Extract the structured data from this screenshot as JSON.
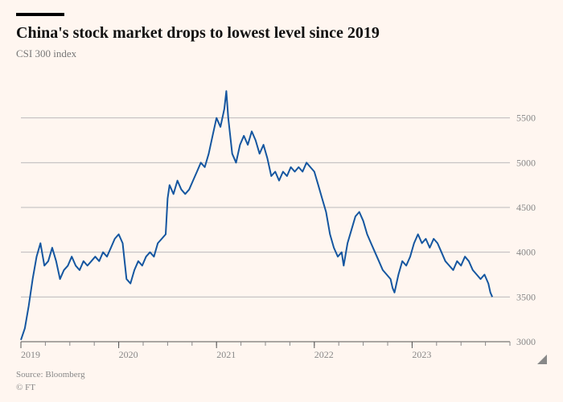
{
  "brand_bar_color": "#000000",
  "title": "China's stock market drops to lowest level since 2019",
  "subtitle": "CSI 300 index",
  "footer_source": "Source: Bloomberg",
  "footer_copyright": "© FT",
  "chart": {
    "type": "line",
    "background_color": "#fff6f0",
    "line_color": "#1556a0",
    "line_width": 2,
    "grid_color": "#bbbbbb",
    "baseline_color": "#555555",
    "label_color": "#888888",
    "label_fontsize": 12,
    "x_domain": [
      2019,
      2024
    ],
    "x_ticks": [
      2019,
      2020,
      2021,
      2022,
      2023
    ],
    "x_minor_step": 0.25,
    "y_domain": [
      3000,
      6000
    ],
    "y_ticks": [
      3000,
      3500,
      4000,
      4500,
      5000,
      5500
    ],
    "data": [
      [
        2019.0,
        3020
      ],
      [
        2019.04,
        3150
      ],
      [
        2019.08,
        3400
      ],
      [
        2019.12,
        3700
      ],
      [
        2019.16,
        3950
      ],
      [
        2019.2,
        4100
      ],
      [
        2019.24,
        3850
      ],
      [
        2019.28,
        3900
      ],
      [
        2019.32,
        4050
      ],
      [
        2019.36,
        3900
      ],
      [
        2019.4,
        3700
      ],
      [
        2019.44,
        3800
      ],
      [
        2019.48,
        3850
      ],
      [
        2019.52,
        3950
      ],
      [
        2019.56,
        3850
      ],
      [
        2019.6,
        3800
      ],
      [
        2019.64,
        3900
      ],
      [
        2019.68,
        3850
      ],
      [
        2019.72,
        3900
      ],
      [
        2019.76,
        3950
      ],
      [
        2019.8,
        3900
      ],
      [
        2019.84,
        4000
      ],
      [
        2019.88,
        3950
      ],
      [
        2019.92,
        4050
      ],
      [
        2019.96,
        4150
      ],
      [
        2020.0,
        4200
      ],
      [
        2020.04,
        4100
      ],
      [
        2020.08,
        3700
      ],
      [
        2020.12,
        3650
      ],
      [
        2020.16,
        3800
      ],
      [
        2020.2,
        3900
      ],
      [
        2020.24,
        3850
      ],
      [
        2020.28,
        3950
      ],
      [
        2020.32,
        4000
      ],
      [
        2020.36,
        3950
      ],
      [
        2020.4,
        4100
      ],
      [
        2020.44,
        4150
      ],
      [
        2020.48,
        4200
      ],
      [
        2020.5,
        4600
      ],
      [
        2020.52,
        4750
      ],
      [
        2020.56,
        4650
      ],
      [
        2020.6,
        4800
      ],
      [
        2020.64,
        4700
      ],
      [
        2020.68,
        4650
      ],
      [
        2020.72,
        4700
      ],
      [
        2020.76,
        4800
      ],
      [
        2020.8,
        4900
      ],
      [
        2020.84,
        5000
      ],
      [
        2020.88,
        4950
      ],
      [
        2020.92,
        5100
      ],
      [
        2020.96,
        5300
      ],
      [
        2021.0,
        5500
      ],
      [
        2021.04,
        5400
      ],
      [
        2021.08,
        5600
      ],
      [
        2021.1,
        5800
      ],
      [
        2021.12,
        5500
      ],
      [
        2021.16,
        5100
      ],
      [
        2021.2,
        5000
      ],
      [
        2021.24,
        5200
      ],
      [
        2021.28,
        5300
      ],
      [
        2021.32,
        5200
      ],
      [
        2021.36,
        5350
      ],
      [
        2021.4,
        5250
      ],
      [
        2021.44,
        5100
      ],
      [
        2021.48,
        5200
      ],
      [
        2021.52,
        5050
      ],
      [
        2021.56,
        4850
      ],
      [
        2021.6,
        4900
      ],
      [
        2021.64,
        4800
      ],
      [
        2021.68,
        4900
      ],
      [
        2021.72,
        4850
      ],
      [
        2021.76,
        4950
      ],
      [
        2021.8,
        4900
      ],
      [
        2021.84,
        4950
      ],
      [
        2021.88,
        4900
      ],
      [
        2021.92,
        5000
      ],
      [
        2021.96,
        4950
      ],
      [
        2022.0,
        4900
      ],
      [
        2022.04,
        4750
      ],
      [
        2022.08,
        4600
      ],
      [
        2022.12,
        4450
      ],
      [
        2022.16,
        4200
      ],
      [
        2022.2,
        4050
      ],
      [
        2022.24,
        3950
      ],
      [
        2022.28,
        4000
      ],
      [
        2022.3,
        3850
      ],
      [
        2022.34,
        4100
      ],
      [
        2022.38,
        4250
      ],
      [
        2022.42,
        4400
      ],
      [
        2022.46,
        4450
      ],
      [
        2022.5,
        4350
      ],
      [
        2022.54,
        4200
      ],
      [
        2022.58,
        4100
      ],
      [
        2022.62,
        4000
      ],
      [
        2022.66,
        3900
      ],
      [
        2022.7,
        3800
      ],
      [
        2022.74,
        3750
      ],
      [
        2022.78,
        3700
      ],
      [
        2022.8,
        3600
      ],
      [
        2022.82,
        3550
      ],
      [
        2022.86,
        3750
      ],
      [
        2022.9,
        3900
      ],
      [
        2022.94,
        3850
      ],
      [
        2022.98,
        3950
      ],
      [
        2023.02,
        4100
      ],
      [
        2023.06,
        4200
      ],
      [
        2023.1,
        4100
      ],
      [
        2023.14,
        4150
      ],
      [
        2023.18,
        4050
      ],
      [
        2023.22,
        4150
      ],
      [
        2023.26,
        4100
      ],
      [
        2023.3,
        4000
      ],
      [
        2023.34,
        3900
      ],
      [
        2023.38,
        3850
      ],
      [
        2023.42,
        3800
      ],
      [
        2023.46,
        3900
      ],
      [
        2023.5,
        3850
      ],
      [
        2023.54,
        3950
      ],
      [
        2023.58,
        3900
      ],
      [
        2023.62,
        3800
      ],
      [
        2023.66,
        3750
      ],
      [
        2023.7,
        3700
      ],
      [
        2023.74,
        3750
      ],
      [
        2023.78,
        3650
      ],
      [
        2023.8,
        3550
      ],
      [
        2023.82,
        3500
      ]
    ]
  }
}
